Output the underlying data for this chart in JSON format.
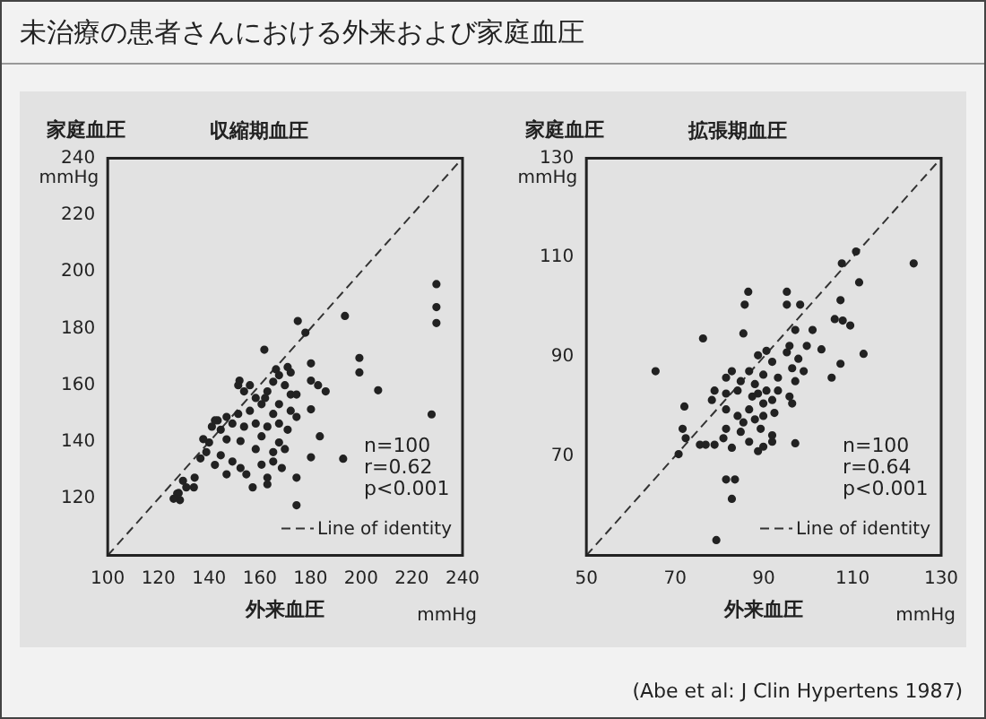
{
  "chart_data": [
    {
      "type": "scatter",
      "title": "収縮期血圧",
      "xlabel": "外来血圧",
      "ylabel": "家庭血圧",
      "annotations": [
        "未治療の患者さんにおける外来および家庭血圧",
        "n=100",
        "r=0.62",
        "p<0.001",
        "mmHg",
        "mmHg"
      ],
      "xlim": [
        100,
        240
      ],
      "ylim": [
        100,
        240
      ],
      "xticks": [
        100,
        120,
        140,
        160,
        180,
        200,
        220,
        240
      ],
      "yticks": [
        120,
        140,
        160,
        180,
        200,
        220,
        240
      ],
      "grid": false,
      "legend": "bottom right",
      "series": [
        {
          "type": "scatter",
          "color": "#222222",
          "marker": "circle",
          "x": [
            229.7,
            229.7,
            229.7,
            227.8,
            193.6,
            175,
            178,
            161.8,
            199.3,
            199.3,
            206.7,
            180.2,
            180.2,
            183,
            186,
            180.2,
            183.7,
            180.2,
            192.9,
            174.5,
            174.5,
            152,
            171,
            167.6,
            165.3,
            169.9,
            172.2,
            163,
            158.4,
            153.8,
            160.7,
            167.6,
            172.2,
            165.3,
            156.1,
            151.5,
            146.9,
            143.4,
            141.1,
            144.6,
            149.2,
            153.8,
            158.4,
            163,
            167.6,
            171,
            160.7,
            167.6,
            152.4,
            146.9,
            140,
            138.9,
            144.6,
            149.2,
            152.4,
            154.7,
            160.7,
            165.3,
            168.7,
            163,
            163,
            157.2,
            137.7,
            136.6,
            134.3,
            129.7,
            127.4,
            128.5,
            142.3,
            146.9,
            142.3,
            151.5,
            156.1,
            162.1,
            174.5,
            174.5,
            172.2,
            166.4,
            169.9,
            165.3,
            158.4,
            128,
            131,
            134,
            126
          ],
          "values": [
            195.6,
            187.5,
            181.9,
            149.7,
            184.4,
            182.6,
            178.5,
            172.5,
            169.6,
            164.5,
            158.2,
            167.7,
            161.6,
            160,
            157.8,
            151.5,
            142,
            134.6,
            134.1,
            127.4,
            117.7,
            161.6,
            166.4,
            163.5,
            161.2,
            160,
            156.7,
            157.8,
            155.5,
            157.8,
            153.3,
            153.3,
            151,
            149.9,
            151,
            149.9,
            148.8,
            147.6,
            145.4,
            144.3,
            146.5,
            145.4,
            146.5,
            145.4,
            146.5,
            144.3,
            142,
            139.8,
            140.3,
            140.9,
            139.8,
            136.4,
            135.3,
            133.1,
            130.8,
            128.6,
            132,
            133.1,
            130.8,
            127.4,
            125.1,
            124,
            141,
            134.2,
            127.4,
            126.3,
            121.8,
            119.5,
            131.9,
            128.6,
            147.6,
            160,
            160,
            155.5,
            148.8,
            156.7,
            164.5,
            165.6,
            137.5,
            136.4,
            137.5,
            122,
            124,
            124,
            120
          ]
        },
        {
          "type": "line",
          "name": "Line of identity",
          "color": "#333333",
          "line_style": "dashed",
          "marker": "none",
          "x": [
            100,
            240
          ],
          "values": [
            100,
            240
          ]
        }
      ]
    },
    {
      "type": "scatter",
      "title": "拡張期血圧",
      "xlabel": "外来血圧",
      "ylabel": "家庭血圧",
      "annotations": [
        "(Abe et al: J Clin Hypertens 1987)",
        "n=100",
        "r=0.64",
        "p<0.001",
        "mmHg",
        "mmHg"
      ],
      "xlim": [
        50,
        130
      ],
      "ylim": [
        50,
        130
      ],
      "xticks": [
        50,
        70,
        90,
        110,
        130
      ],
      "yticks": [
        70,
        90,
        110,
        130
      ],
      "grid": false,
      "legend": "bottom right",
      "series": [
        {
          "type": "scatter",
          "color": "#222222",
          "marker": "circle",
          "x": [
            123.8,
            65.6,
            76.3,
            107.6,
            111.5,
            110.8,
            86.5,
            85.7,
            95.2,
            95.2,
            98.2,
            85.4,
            107.3,
            106,
            107.8,
            109.5,
            112.5,
            107.3,
            105.3,
            101,
            97.1,
            95.8,
            99.7,
            103,
            97.8,
            95.2,
            90.6,
            88.7,
            91.9,
            96.4,
            99,
            97.1,
            93.2,
            89.9,
            86.7,
            82.8,
            81.5,
            84.8,
            88,
            88.7,
            87.4,
            90.6,
            93.2,
            95.8,
            96.4,
            91.9,
            89.9,
            86.7,
            84.1,
            81.5,
            78.9,
            78.3,
            81.5,
            84.1,
            85.4,
            88,
            89.9,
            92.4,
            89.3,
            86.7,
            84.8,
            81.5,
            80.9,
            82.8,
            78.9,
            75.6,
            76.9,
            72.4,
            71.7,
            72.1,
            70.8,
            88.7,
            91.9,
            91.9,
            97.1,
            89.9,
            81.5,
            83.5,
            82.8,
            79.3
          ],
          "values": [
            108.8,
            87.1,
            93.7,
            108.8,
            105,
            111.2,
            103.1,
            100.5,
            103.1,
            100.5,
            100.5,
            94.7,
            101.4,
            97.6,
            97.3,
            96.3,
            90.6,
            88.6,
            85.8,
            95.4,
            95.4,
            92.2,
            92.2,
            91.5,
            89.6,
            90.9,
            91.2,
            90.3,
            89,
            87.7,
            87.1,
            85.1,
            85.8,
            86.4,
            87.1,
            87.1,
            85.8,
            85.1,
            84.5,
            82.6,
            82,
            83.2,
            83.2,
            82,
            80.6,
            81.3,
            80.6,
            79.4,
            83.2,
            82.6,
            83.2,
            81.3,
            79.4,
            78.1,
            76.8,
            77.4,
            78.1,
            78.7,
            75.5,
            72.9,
            74.9,
            75.5,
            73.6,
            71.7,
            72.3,
            72.3,
            72.3,
            73.6,
            75.5,
            80,
            70.4,
            71,
            72.9,
            74.2,
            72.6,
            71.9,
            65.3,
            65.3,
            61.4,
            53.1
          ]
        },
        {
          "type": "line",
          "name": "Line of identity",
          "color": "#333333",
          "line_style": "dashed",
          "marker": "none",
          "x": [
            50,
            130
          ],
          "values": [
            50,
            130
          ]
        }
      ]
    }
  ]
}
